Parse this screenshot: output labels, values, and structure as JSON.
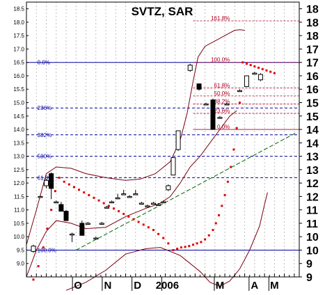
{
  "chart_data": {
    "type": "candlestick",
    "title": "SVTZ, SAR",
    "xlabel": "",
    "ylabel": "",
    "grid": true,
    "ylim": [
      8.5,
      18.75
    ],
    "x_range": [
      0,
      27.5
    ],
    "x_tick_labels": [
      {
        "label": "O",
        "x": 5.2
      },
      {
        "label": "N",
        "x": 8.2
      },
      {
        "label": "D",
        "x": 11.2
      },
      {
        "label": "2006",
        "x": 14.2
      },
      {
        "label": "M",
        "x": 19.5
      },
      {
        "label": "A",
        "x": 23.0
      },
      {
        "label": "M",
        "x": 25.0
      }
    ],
    "y_ticks_left": [
      9.0,
      9.5,
      10.0,
      10.5,
      11.0,
      11.5,
      12.0,
      12.5,
      13.0,
      13.5,
      14.0,
      14.5,
      15.0,
      15.5,
      16.0,
      16.5,
      17.0,
      17.5,
      18.0,
      18.5
    ],
    "y_ticks_left_labels": [
      "9.0",
      "9.5",
      "10.0",
      "10.5",
      "11.0",
      "11.5",
      "12.0",
      "12.5",
      "13.0",
      "13.5",
      "14.0",
      "14.5",
      "15.0",
      "15.5",
      "16.0",
      "16.5",
      "17.0",
      "17.5",
      "18.0",
      "18.5"
    ],
    "y_ticks_right": [
      8.5,
      9,
      9.5,
      10,
      10.5,
      11,
      11.5,
      12,
      12.5,
      13,
      13.5,
      14,
      14.5,
      15,
      15.5,
      16,
      16.5,
      17,
      17.5,
      18,
      18.5
    ],
    "y_ticks_right_labels": [
      "9",
      "9",
      "10",
      "10",
      "11",
      "11",
      "12",
      "12",
      "13",
      "13",
      "14",
      "14",
      "15",
      "15",
      "16",
      "16",
      "17",
      "17",
      "18",
      "18",
      "18"
    ],
    "vertical_gridlines_x": [
      1,
      2,
      3,
      4,
      5,
      6,
      7,
      8,
      9,
      10,
      11,
      12,
      13,
      14,
      15,
      16,
      17,
      18,
      19,
      20,
      21,
      22,
      23,
      24,
      25,
      26,
      27
    ],
    "candles": [
      {
        "x": 0.7,
        "o": 9.45,
        "h": 9.7,
        "l": 9.4,
        "c": 9.65
      },
      {
        "x": 1.4,
        "o": 11.5,
        "h": 11.55,
        "l": 11.45,
        "c": 11.5
      },
      {
        "x": 2.0,
        "o": 11.9,
        "h": 12.15,
        "l": 11.8,
        "c": 12.1
      },
      {
        "x": 2.5,
        "o": 12.35,
        "h": 12.4,
        "l": 11.4,
        "c": 11.8
      },
      {
        "x": 3.0,
        "o": 11.3,
        "h": 11.35,
        "l": 11.25,
        "c": 11.3
      },
      {
        "x": 3.5,
        "o": 11.2,
        "h": 11.3,
        "l": 10.95,
        "c": 10.95
      },
      {
        "x": 4.0,
        "o": 10.95,
        "h": 11.0,
        "l": 10.6,
        "c": 10.6
      },
      {
        "x": 4.6,
        "o": 10.1,
        "h": 10.15,
        "l": 9.8,
        "c": 10.1
      },
      {
        "x": 5.6,
        "o": 10.5,
        "h": 10.6,
        "l": 10.05,
        "c": 10.05
      },
      {
        "x": 6.2,
        "o": 10.5,
        "h": 10.55,
        "l": 10.45,
        "c": 10.5
      },
      {
        "x": 7.0,
        "o": 9.95,
        "h": 10.0,
        "l": 9.9,
        "c": 9.95
      },
      {
        "x": 7.6,
        "o": 10.5,
        "h": 10.55,
        "l": 10.45,
        "c": 10.5
      },
      {
        "x": 8.1,
        "o": 11.1,
        "h": 11.15,
        "l": 11.05,
        "c": 11.1
      },
      {
        "x": 8.6,
        "o": 11.3,
        "h": 11.35,
        "l": 11.25,
        "c": 11.3
      },
      {
        "x": 9.2,
        "o": 11.45,
        "h": 11.6,
        "l": 11.4,
        "c": 11.45
      },
      {
        "x": 9.8,
        "o": 11.6,
        "h": 11.75,
        "l": 11.55,
        "c": 11.6
      },
      {
        "x": 10.4,
        "o": 11.5,
        "h": 11.55,
        "l": 11.45,
        "c": 11.5
      },
      {
        "x": 11.0,
        "o": 11.6,
        "h": 11.75,
        "l": 11.55,
        "c": 11.6
      },
      {
        "x": 11.6,
        "o": 11.25,
        "h": 11.3,
        "l": 11.2,
        "c": 11.25
      },
      {
        "x": 12.2,
        "o": 11.15,
        "h": 11.2,
        "l": 11.1,
        "c": 11.15
      },
      {
        "x": 12.8,
        "o": 11.25,
        "h": 11.3,
        "l": 11.2,
        "c": 11.25
      },
      {
        "x": 13.3,
        "o": 11.2,
        "h": 11.25,
        "l": 11.15,
        "c": 11.2
      },
      {
        "x": 13.8,
        "o": 11.3,
        "h": 11.35,
        "l": 11.25,
        "c": 11.3
      },
      {
        "x": 14.3,
        "o": 11.75,
        "h": 11.95,
        "l": 11.7,
        "c": 11.9
      },
      {
        "x": 14.8,
        "o": 12.3,
        "h": 12.95,
        "l": 12.3,
        "c": 12.95
      },
      {
        "x": 15.3,
        "o": 13.25,
        "h": 13.95,
        "l": 13.2,
        "c": 13.95
      },
      {
        "x": 16.5,
        "o": 16.2,
        "h": 16.45,
        "l": 16.15,
        "c": 16.4
      },
      {
        "x": 17.4,
        "o": 15.7,
        "h": 15.72,
        "l": 15.45,
        "c": 15.5
      },
      {
        "x": 18.1,
        "o": 14.95,
        "h": 15.0,
        "l": 14.9,
        "c": 14.95
      },
      {
        "x": 18.8,
        "o": 15.1,
        "h": 15.15,
        "l": 14.0,
        "c": 14.0
      },
      {
        "x": 19.5,
        "o": 14.45,
        "h": 14.5,
        "l": 14.4,
        "c": 14.45
      },
      {
        "x": 20.2,
        "o": 14.95,
        "h": 15.0,
        "l": 14.9,
        "c": 14.95
      },
      {
        "x": 21.5,
        "o": 15.45,
        "h": 15.5,
        "l": 15.4,
        "c": 15.45
      },
      {
        "x": 22.2,
        "o": 15.6,
        "h": 16.0,
        "l": 15.6,
        "c": 16.0
      },
      {
        "x": 23.0,
        "o": 16.1,
        "h": 16.15,
        "l": 16.05,
        "c": 16.1
      },
      {
        "x": 23.6,
        "o": 15.85,
        "h": 16.1,
        "l": 15.8,
        "c": 16.05
      }
    ],
    "sar": [
      {
        "x": 0.7,
        "y": 8.4
      },
      {
        "x": 1.2,
        "y": 8.9
      },
      {
        "x": 1.7,
        "y": 9.6
      },
      {
        "x": 2.1,
        "y": 10.3
      },
      {
        "x": 2.5,
        "y": 11.0
      },
      {
        "x": 2.9,
        "y": 11.7
      },
      {
        "x": 3.3,
        "y": 12.2
      },
      {
        "x": 3.8,
        "y": 12.05
      },
      {
        "x": 4.3,
        "y": 11.95
      },
      {
        "x": 4.8,
        "y": 11.85
      },
      {
        "x": 5.3,
        "y": 11.75
      },
      {
        "x": 5.8,
        "y": 11.65
      },
      {
        "x": 6.3,
        "y": 11.55
      },
      {
        "x": 6.8,
        "y": 11.45
      },
      {
        "x": 7.3,
        "y": 11.35
      },
      {
        "x": 7.8,
        "y": 11.25
      },
      {
        "x": 8.3,
        "y": 11.15
      },
      {
        "x": 8.8,
        "y": 11.05
      },
      {
        "x": 9.3,
        "y": 10.95
      },
      {
        "x": 9.8,
        "y": 10.85
      },
      {
        "x": 10.3,
        "y": 10.75
      },
      {
        "x": 10.8,
        "y": 10.65
      },
      {
        "x": 11.3,
        "y": 10.55
      },
      {
        "x": 11.8,
        "y": 10.45
      },
      {
        "x": 12.3,
        "y": 10.35
      },
      {
        "x": 12.8,
        "y": 10.25
      },
      {
        "x": 13.3,
        "y": 10.1
      },
      {
        "x": 13.8,
        "y": 9.95
      },
      {
        "x": 14.3,
        "y": 9.75
      },
      {
        "x": 14.8,
        "y": 9.5
      },
      {
        "x": 15.2,
        "y": 9.55
      },
      {
        "x": 15.6,
        "y": 9.6
      },
      {
        "x": 16.0,
        "y": 9.62
      },
      {
        "x": 16.4,
        "y": 9.65
      },
      {
        "x": 16.8,
        "y": 9.7
      },
      {
        "x": 17.2,
        "y": 9.75
      },
      {
        "x": 17.6,
        "y": 9.8
      },
      {
        "x": 18.0,
        "y": 9.9
      },
      {
        "x": 18.4,
        "y": 10.05
      },
      {
        "x": 18.8,
        "y": 10.25
      },
      {
        "x": 19.1,
        "y": 10.5
      },
      {
        "x": 19.4,
        "y": 10.8
      },
      {
        "x": 19.7,
        "y": 11.15
      },
      {
        "x": 20.0,
        "y": 11.55
      },
      {
        "x": 20.3,
        "y": 12.05
      },
      {
        "x": 20.6,
        "y": 12.6
      },
      {
        "x": 20.9,
        "y": 13.25
      },
      {
        "x": 21.2,
        "y": 14.05
      },
      {
        "x": 21.5,
        "y": 15.0
      },
      {
        "x": 21.8,
        "y": 16.5
      },
      {
        "x": 22.2,
        "y": 16.45
      },
      {
        "x": 22.6,
        "y": 16.4
      },
      {
        "x": 23.0,
        "y": 16.35
      },
      {
        "x": 23.4,
        "y": 16.3
      },
      {
        "x": 23.8,
        "y": 16.25
      },
      {
        "x": 24.2,
        "y": 16.2
      },
      {
        "x": 24.6,
        "y": 16.15
      },
      {
        "x": 25.0,
        "y": 16.1
      }
    ],
    "bollinger_upper": [
      {
        "x": 0.0,
        "y": 9.7
      },
      {
        "x": 1.0,
        "y": 11.0
      },
      {
        "x": 2.0,
        "y": 12.35
      },
      {
        "x": 3.0,
        "y": 12.6
      },
      {
        "x": 4.5,
        "y": 12.55
      },
      {
        "x": 6.0,
        "y": 12.35
      },
      {
        "x": 8.0,
        "y": 12.2
      },
      {
        "x": 10.0,
        "y": 12.1
      },
      {
        "x": 11.5,
        "y": 12.15
      },
      {
        "x": 13.0,
        "y": 12.35
      },
      {
        "x": 14.5,
        "y": 12.8
      },
      {
        "x": 15.5,
        "y": 13.6
      },
      {
        "x": 16.2,
        "y": 14.6
      },
      {
        "x": 16.8,
        "y": 15.8
      },
      {
        "x": 17.3,
        "y": 16.7
      },
      {
        "x": 18.0,
        "y": 17.1
      },
      {
        "x": 19.0,
        "y": 17.3
      },
      {
        "x": 20.0,
        "y": 17.5
      },
      {
        "x": 21.0,
        "y": 17.7
      },
      {
        "x": 21.5,
        "y": 17.72
      },
      {
        "x": 22.0,
        "y": 17.7
      }
    ],
    "bollinger_middle": [
      {
        "x": 0.0,
        "y": 8.5
      },
      {
        "x": 1.0,
        "y": 9.5
      },
      {
        "x": 2.0,
        "y": 10.2
      },
      {
        "x": 3.0,
        "y": 10.6
      },
      {
        "x": 4.5,
        "y": 10.5
      },
      {
        "x": 6.0,
        "y": 10.3
      },
      {
        "x": 8.0,
        "y": 10.35
      },
      {
        "x": 10.0,
        "y": 10.75
      },
      {
        "x": 12.0,
        "y": 11.05
      },
      {
        "x": 13.5,
        "y": 11.25
      },
      {
        "x": 14.5,
        "y": 11.5
      },
      {
        "x": 15.5,
        "y": 12.0
      },
      {
        "x": 16.5,
        "y": 12.6
      },
      {
        "x": 17.5,
        "y": 13.0
      },
      {
        "x": 18.5,
        "y": 13.5
      },
      {
        "x": 19.5,
        "y": 14.0
      },
      {
        "x": 20.5,
        "y": 14.5
      },
      {
        "x": 21.2,
        "y": 14.7
      }
    ],
    "bollinger_lower": [
      {
        "x": 4.0,
        "y": 8.0
      },
      {
        "x": 6.0,
        "y": 8.3
      },
      {
        "x": 8.0,
        "y": 8.75
      },
      {
        "x": 10.0,
        "y": 9.35
      },
      {
        "x": 12.0,
        "y": 9.55
      },
      {
        "x": 13.5,
        "y": 9.6
      },
      {
        "x": 14.5,
        "y": 9.45
      },
      {
        "x": 15.5,
        "y": 9.3
      },
      {
        "x": 16.5,
        "y": 9.0
      },
      {
        "x": 17.5,
        "y": 8.7
      },
      {
        "x": 18.5,
        "y": 8.3
      },
      {
        "x": 19.5,
        "y": 8.15
      },
      {
        "x": 20.5,
        "y": 8.35
      },
      {
        "x": 21.5,
        "y": 8.8
      },
      {
        "x": 22.5,
        "y": 9.5
      },
      {
        "x": 23.5,
        "y": 10.4
      },
      {
        "x": 24.0,
        "y": 11.2
      },
      {
        "x": 24.3,
        "y": 11.65
      }
    ],
    "trendline": {
      "x1": 5.0,
      "y1": 9.5,
      "x2": 27.3,
      "y2": 13.9
    },
    "fib_retracement_left": {
      "x_start": 0.0,
      "x_end": 27.5,
      "levels": [
        {
          "label": "0.0%",
          "y": 16.5
        },
        {
          "label": "236%",
          "y": 14.8
        },
        {
          "label": "382%",
          "y": 13.8
        },
        {
          "label": "500%",
          "y": 13.0
        },
        {
          "label": "61.8%",
          "y": 12.2
        },
        {
          "label": "100.0%",
          "y": 9.5
        }
      ]
    },
    "fib_retracement_right": {
      "x_start": 16.8,
      "x_end": 27.5,
      "levels": [
        {
          "label": "161.8%",
          "y": 18.05
        },
        {
          "label": "100.0%",
          "y": 16.5
        },
        {
          "label": "61.8%",
          "y": 15.55
        },
        {
          "label": "50.0%",
          "y": 15.25
        },
        {
          "label": "38.2%",
          "y": 14.95
        },
        {
          "label": "23.6%",
          "y": 14.6
        },
        {
          "label": "0.0%",
          "y": 14.0
        }
      ]
    },
    "colors": {
      "fib_left": "#0000a0",
      "fib_right": "#b00020",
      "sar": "#e00000",
      "bollinger": "#7a0010",
      "trendline": "#006400",
      "candle": "#000000",
      "grid": "#b0b0b0",
      "frame": "#000000"
    }
  }
}
